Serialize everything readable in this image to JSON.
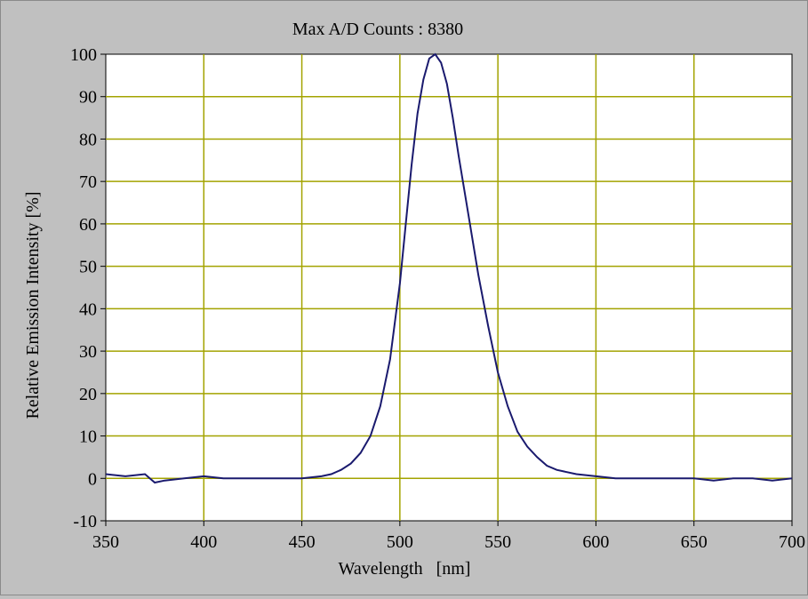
{
  "chart_data": {
    "type": "line",
    "title": "Max A/D Counts : 8380",
    "xlabel": "Wavelength   [nm]",
    "ylabel": "Relative Emission Intensity [%]",
    "xlim": [
      350,
      700
    ],
    "ylim": [
      -10,
      100
    ],
    "xticks": [
      350,
      400,
      450,
      500,
      550,
      600,
      650,
      700
    ],
    "yticks": [
      -10,
      0,
      10,
      20,
      30,
      40,
      50,
      60,
      70,
      80,
      90,
      100
    ],
    "grid": true,
    "colors": {
      "line": "#1a1a6e",
      "grid": "#a3a300",
      "plot_bg": "#ffffff",
      "frame_bg": "#c0c0c0"
    },
    "series": [
      {
        "x": [
          350,
          360,
          370,
          375,
          380,
          390,
          400,
          410,
          420,
          430,
          440,
          450,
          460,
          465,
          470,
          475,
          480,
          485,
          490,
          495,
          500,
          503,
          506,
          509,
          512,
          515,
          518,
          521,
          524,
          527,
          530,
          535,
          540,
          545,
          550,
          555,
          560,
          565,
          570,
          575,
          580,
          590,
          600,
          610,
          620,
          630,
          640,
          650,
          660,
          670,
          680,
          690,
          700
        ],
        "y": [
          1,
          0.5,
          1,
          -1,
          -0.5,
          0,
          0.5,
          0,
          0,
          0,
          0,
          0,
          0.5,
          1,
          2,
          3.5,
          6,
          10,
          17,
          28,
          46,
          60,
          74,
          86,
          94,
          99,
          100,
          98,
          93,
          85,
          76,
          62,
          48,
          36,
          25,
          17,
          11,
          7.5,
          5,
          3,
          2,
          1,
          0.5,
          0,
          0,
          0,
          0,
          0,
          -0.5,
          0,
          0,
          -0.5,
          0
        ]
      }
    ]
  }
}
